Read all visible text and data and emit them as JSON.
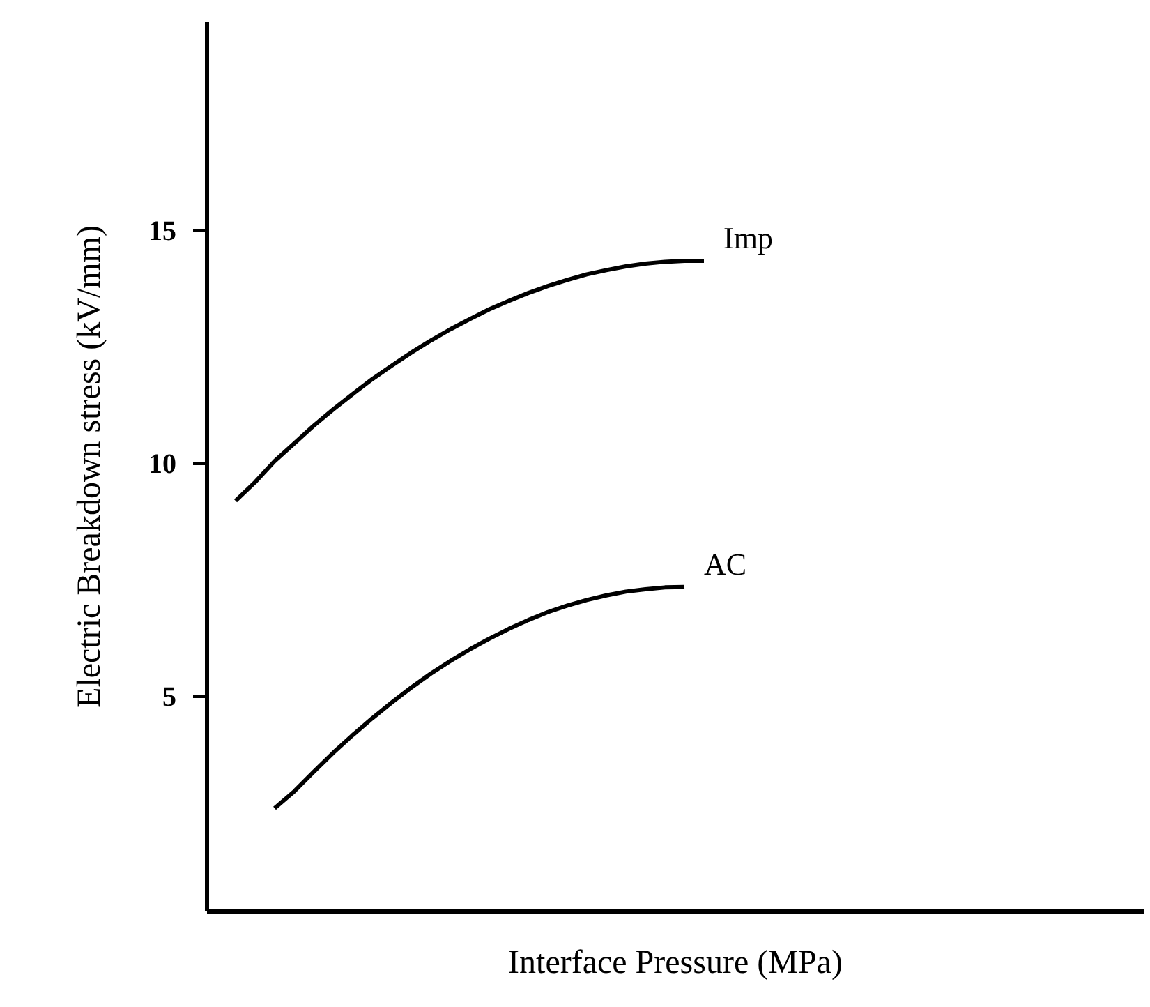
{
  "chart_data": {
    "type": "line",
    "xlabel": "Interface Pressure (MPa)",
    "ylabel": "Electric Breakdown stress (kV/mm)",
    "categories": [
      null,
      null,
      null,
      null,
      null,
      null,
      null,
      null,
      null,
      null,
      null,
      null,
      null,
      null,
      null,
      null,
      null,
      null,
      null,
      null,
      null,
      null,
      null,
      null,
      null,
      null,
      null,
      null,
      null,
      null,
      null,
      null,
      null,
      null,
      null,
      null,
      null,
      null,
      null,
      null,
      null,
      null,
      null,
      null,
      null,
      null,
      null,
      null
    ],
    "series": [
      {
        "name": "Imp",
        "color": "#000000",
        "values": [
          null,
          9.2,
          9.6,
          10.05,
          10.43,
          10.81,
          11.16,
          11.49,
          11.81,
          12.1,
          12.38,
          12.64,
          12.88,
          13.1,
          13.31,
          13.49,
          13.66,
          13.81,
          13.94,
          14.06,
          14.15,
          14.23,
          14.29,
          14.33,
          14.35,
          14.35,
          null,
          null,
          null,
          null,
          null,
          null,
          null,
          null,
          null,
          null,
          null,
          null,
          null,
          null,
          null,
          null,
          null,
          null,
          null,
          null,
          null,
          null
        ]
      },
      {
        "name": "AC",
        "color": "#000000",
        "values": [
          null,
          null,
          null,
          2.6,
          2.96,
          3.38,
          3.79,
          4.17,
          4.53,
          4.87,
          5.19,
          5.49,
          5.76,
          6.01,
          6.24,
          6.45,
          6.64,
          6.81,
          6.95,
          7.07,
          7.17,
          7.25,
          7.3,
          7.34,
          7.35,
          null,
          null,
          null,
          null,
          null,
          null,
          null,
          null,
          null,
          null,
          null,
          null,
          null,
          null,
          null,
          null,
          null,
          null,
          null,
          null,
          null,
          null,
          null
        ]
      }
    ],
    "ylim": [
      0.4,
      19.5
    ],
    "yticks": [
      5,
      10,
      15
    ],
    "grid": false,
    "legend": false,
    "tick_labels": "y",
    "marker": "none",
    "line_style": "solid"
  }
}
